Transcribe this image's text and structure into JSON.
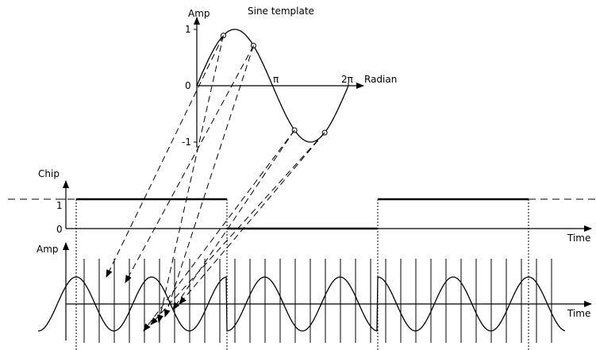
{
  "template": {
    "title": "Sine template",
    "y_axis_label": "Amp",
    "x_axis_label": "Radian",
    "y_tick_pos": "1",
    "y_tick_zero": "0",
    "y_tick_neg": "-1",
    "x_tick_pi": "π",
    "x_tick_2pi": "2π"
  },
  "chip": {
    "y_axis_label": "Chip",
    "x_axis_label": "Time",
    "level_high": "1",
    "level_low": "0",
    "sequence": [
      1,
      0,
      1
    ]
  },
  "signal": {
    "y_axis_label": "Amp",
    "x_axis_label": "Time",
    "cycles_per_chip": 2
  },
  "colors": {
    "stroke": "#000000",
    "background": "#ffffff"
  }
}
